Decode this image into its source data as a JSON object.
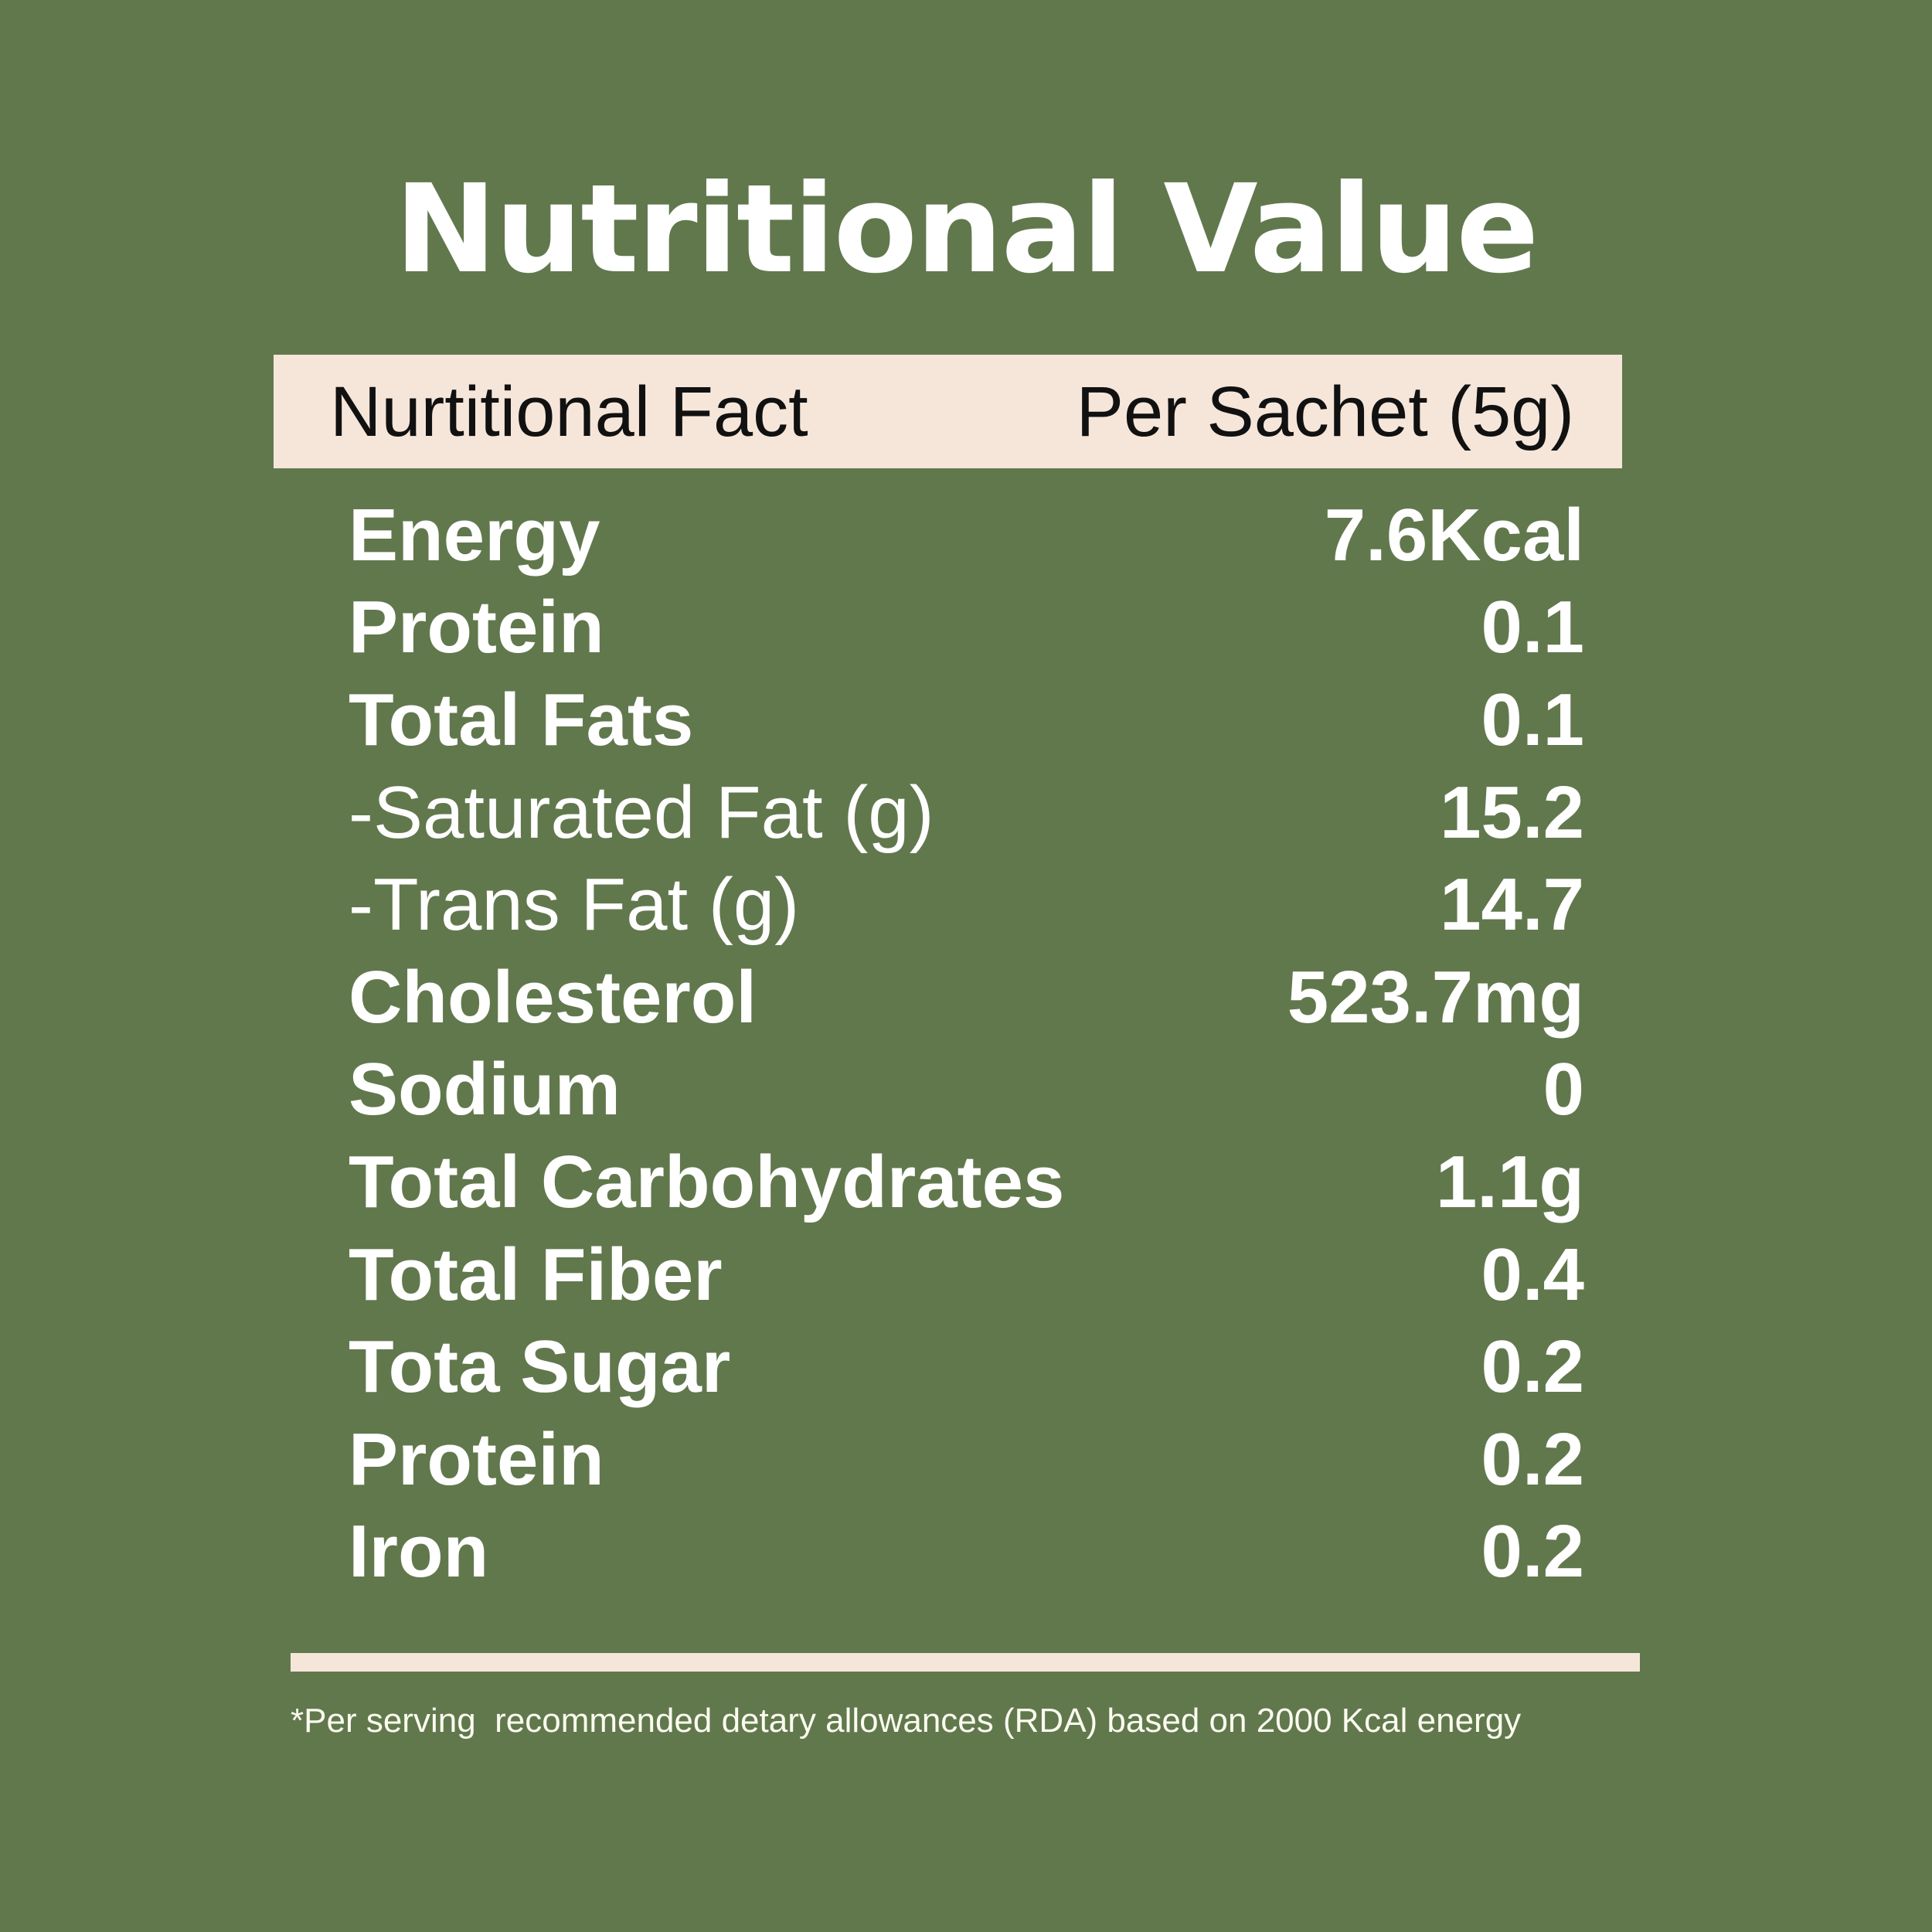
{
  "title": "Nutritional Value",
  "table": {
    "header": {
      "left": "Nurtitional Fact",
      "right": "Per Sachet (5g)"
    },
    "rows": [
      {
        "label": "Energy",
        "value": "7.6Kcal"
      },
      {
        "label": "Protein",
        "value": "0.1"
      },
      {
        "label": "Total Fats",
        "value": "0.1"
      },
      {
        "label": "-Saturated Fat (g)",
        "value": "15.2"
      },
      {
        "label": "-Trans Fat (g)",
        "value": "14.7"
      },
      {
        "label": "Cholesterol",
        "value": "523.7mg"
      },
      {
        "label": "Sodium",
        "value": "0"
      },
      {
        "label": "Total Carbohydrates",
        "value": "1.1g"
      },
      {
        "label": "Total Fiber",
        "value": "0.4"
      },
      {
        "label": "Tota Sugar",
        "value": "0.2"
      },
      {
        "label": "Protein",
        "value": "0.2"
      },
      {
        "label": "Iron",
        "value": "0.2"
      }
    ]
  },
  "footnote": "*Per serving  recommended detary allowances (RDA) based on 2000 Kcal energy",
  "colors": {
    "background": "#61784d",
    "accent": "#f6e6da"
  }
}
